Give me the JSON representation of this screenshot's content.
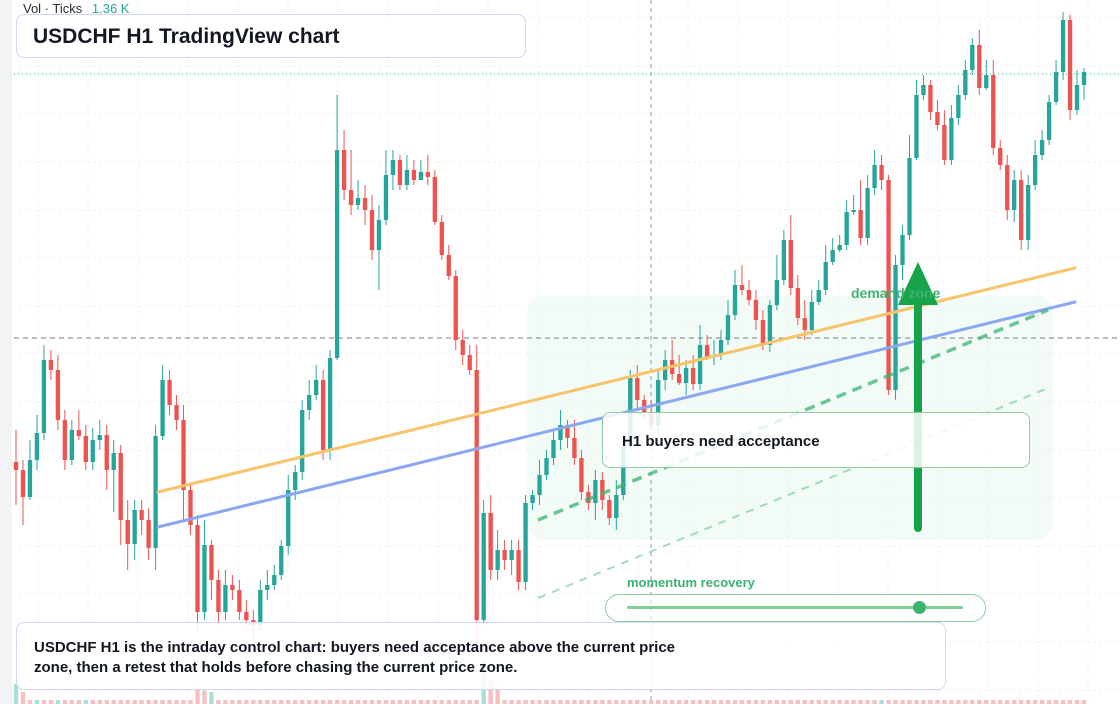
{
  "header": {
    "volume_label": "Vol · Ticks",
    "volume_value": "1.36 K",
    "title": "USDCHF H1 TradingView chart"
  },
  "annotations": {
    "acceptance_label": "H1 buyers need acceptance",
    "demand_label": "demand zone",
    "momentum_label": "momentum recovery",
    "momentum_level": 0.87,
    "note": "USDCHF H1 is the intraday control chart: buyers need acceptance above the current price zone, then a retest that holds before chasing the current price zone."
  },
  "colors": {
    "up": "#26a69a",
    "down": "#ef5350",
    "up_volume": "#8fd3c8",
    "down_volume": "#f6a8ab",
    "orange_trend": "#f7c36b",
    "blue_trend": "#8aa8f0",
    "green_trend": "#3cb371",
    "arrow": "#16a34a",
    "zone_fill": "#eaf7ee"
  },
  "chart_data": {
    "type": "candlestick",
    "title": "",
    "xlabel": "",
    "ylabel": "",
    "price_axis": "hidden",
    "grid": true,
    "price_scale": [
      0,
      704
    ],
    "candles": [
      [
        462,
        470,
        430,
        505
      ],
      [
        470,
        497,
        460,
        525
      ],
      [
        497,
        460,
        440,
        500
      ],
      [
        460,
        433,
        415,
        470
      ],
      [
        433,
        360,
        345,
        440
      ],
      [
        360,
        370,
        350,
        380
      ],
      [
        370,
        420,
        355,
        430
      ],
      [
        420,
        460,
        410,
        470
      ],
      [
        460,
        430,
        420,
        465
      ],
      [
        430,
        436,
        410,
        440
      ],
      [
        436,
        462,
        425,
        470
      ],
      [
        462,
        440,
        428,
        470
      ],
      [
        440,
        435,
        420,
        450
      ],
      [
        435,
        470,
        425,
        490
      ],
      [
        470,
        453,
        440,
        512
      ],
      [
        453,
        520,
        445,
        545
      ],
      [
        520,
        544,
        500,
        570
      ],
      [
        544,
        510,
        500,
        560
      ],
      [
        510,
        520,
        500,
        535
      ],
      [
        520,
        548,
        508,
        560
      ],
      [
        548,
        436,
        425,
        570
      ],
      [
        436,
        380,
        365,
        440
      ],
      [
        380,
        405,
        370,
        415
      ],
      [
        405,
        420,
        395,
        430
      ],
      [
        420,
        490,
        405,
        520
      ],
      [
        490,
        525,
        485,
        535
      ],
      [
        525,
        612,
        515,
        630
      ],
      [
        612,
        545,
        520,
        620
      ],
      [
        545,
        580,
        540,
        600
      ],
      [
        580,
        612,
        570,
        625
      ],
      [
        612,
        585,
        570,
        620
      ],
      [
        585,
        590,
        575,
        600
      ],
      [
        590,
        612,
        580,
        620
      ],
      [
        612,
        620,
        600,
        630
      ],
      [
        620,
        625,
        610,
        640
      ],
      [
        625,
        590,
        580,
        630
      ],
      [
        590,
        585,
        570,
        600
      ],
      [
        585,
        575,
        565,
        590
      ],
      [
        575,
        546,
        540,
        580
      ],
      [
        546,
        490,
        475,
        555
      ],
      [
        490,
        472,
        465,
        500
      ],
      [
        472,
        410,
        400,
        480
      ],
      [
        410,
        395,
        380,
        420
      ],
      [
        395,
        380,
        365,
        400
      ],
      [
        380,
        450,
        370,
        460
      ],
      [
        450,
        358,
        350,
        460
      ],
      [
        358,
        150,
        95,
        360
      ],
      [
        150,
        190,
        130,
        200
      ],
      [
        190,
        205,
        150,
        215
      ],
      [
        205,
        198,
        180,
        210
      ],
      [
        198,
        210,
        185,
        225
      ],
      [
        210,
        250,
        195,
        260
      ],
      [
        250,
        220,
        205,
        290
      ],
      [
        220,
        175,
        150,
        225
      ],
      [
        175,
        160,
        150,
        190
      ],
      [
        160,
        185,
        155,
        190
      ],
      [
        185,
        170,
        155,
        190
      ],
      [
        170,
        180,
        160,
        185
      ],
      [
        180,
        172,
        160,
        180
      ],
      [
        172,
        177,
        155,
        185
      ],
      [
        177,
        222,
        170,
        225
      ],
      [
        222,
        255,
        215,
        260
      ],
      [
        255,
        276,
        245,
        280
      ],
      [
        276,
        340,
        270,
        350
      ],
      [
        340,
        355,
        330,
        365
      ],
      [
        355,
        370,
        345,
        375
      ],
      [
        370,
        620,
        345,
        650
      ],
      [
        620,
        513,
        500,
        625
      ],
      [
        513,
        570,
        495,
        580
      ],
      [
        570,
        550,
        530,
        580
      ],
      [
        550,
        560,
        540,
        570
      ],
      [
        560,
        550,
        540,
        575
      ],
      [
        550,
        582,
        540,
        590
      ],
      [
        582,
        503,
        495,
        590
      ],
      [
        503,
        495,
        490,
        510
      ],
      [
        495,
        475,
        460,
        505
      ],
      [
        475,
        458,
        450,
        480
      ],
      [
        458,
        440,
        430,
        465
      ],
      [
        440,
        425,
        410,
        450
      ],
      [
        425,
        438,
        420,
        448
      ],
      [
        438,
        458,
        420,
        465
      ],
      [
        458,
        492,
        450,
        500
      ],
      [
        492,
        503,
        485,
        510
      ],
      [
        503,
        480,
        470,
        520
      ],
      [
        480,
        500,
        472,
        510
      ],
      [
        500,
        518,
        495,
        525
      ],
      [
        518,
        495,
        480,
        530
      ],
      [
        495,
        447,
        440,
        500
      ],
      [
        447,
        378,
        370,
        450
      ],
      [
        378,
        400,
        365,
        410
      ],
      [
        400,
        412,
        395,
        420
      ],
      [
        412,
        425,
        400,
        430
      ],
      [
        425,
        380,
        370,
        433
      ],
      [
        380,
        360,
        350,
        390
      ],
      [
        360,
        374,
        340,
        380
      ],
      [
        374,
        383,
        355,
        385
      ],
      [
        383,
        368,
        360,
        395
      ],
      [
        368,
        384,
        355,
        390
      ],
      [
        384,
        345,
        325,
        390
      ],
      [
        345,
        357,
        335,
        360
      ],
      [
        357,
        355,
        340,
        365
      ],
      [
        355,
        340,
        330,
        360
      ],
      [
        340,
        315,
        300,
        345
      ],
      [
        315,
        285,
        270,
        320
      ],
      [
        285,
        290,
        265,
        295
      ],
      [
        290,
        300,
        280,
        305
      ],
      [
        300,
        320,
        290,
        330
      ],
      [
        320,
        345,
        310,
        350
      ],
      [
        345,
        305,
        300,
        352
      ],
      [
        305,
        280,
        255,
        310
      ],
      [
        280,
        240,
        230,
        285
      ],
      [
        240,
        288,
        215,
        295
      ],
      [
        288,
        318,
        275,
        325
      ],
      [
        318,
        330,
        300,
        340
      ],
      [
        330,
        302,
        290,
        335
      ],
      [
        302,
        290,
        280,
        305
      ],
      [
        290,
        262,
        245,
        295
      ],
      [
        262,
        250,
        238,
        265
      ],
      [
        250,
        245,
        235,
        252
      ],
      [
        245,
        212,
        200,
        250
      ],
      [
        212,
        210,
        195,
        215
      ],
      [
        210,
        238,
        180,
        245
      ],
      [
        238,
        188,
        175,
        245
      ],
      [
        188,
        165,
        150,
        195
      ],
      [
        165,
        180,
        155,
        190
      ],
      [
        180,
        390,
        175,
        395
      ],
      [
        390,
        265,
        255,
        400
      ],
      [
        265,
        235,
        225,
        280
      ],
      [
        235,
        158,
        135,
        240
      ],
      [
        158,
        95,
        80,
        160
      ],
      [
        95,
        85,
        75,
        100
      ],
      [
        85,
        112,
        80,
        120
      ],
      [
        112,
        125,
        100,
        130
      ],
      [
        125,
        160,
        110,
        165
      ],
      [
        160,
        118,
        105,
        165
      ],
      [
        118,
        95,
        85,
        125
      ],
      [
        95,
        70,
        60,
        100
      ],
      [
        70,
        45,
        38,
        75
      ],
      [
        45,
        88,
        30,
        95
      ],
      [
        88,
        75,
        60,
        90
      ],
      [
        75,
        148,
        60,
        155
      ],
      [
        148,
        165,
        140,
        170
      ],
      [
        165,
        210,
        155,
        220
      ],
      [
        210,
        180,
        170,
        222
      ],
      [
        180,
        240,
        170,
        250
      ],
      [
        240,
        185,
        175,
        250
      ],
      [
        185,
        155,
        140,
        190
      ],
      [
        155,
        140,
        130,
        160
      ],
      [
        140,
        102,
        95,
        145
      ],
      [
        102,
        72,
        60,
        105
      ],
      [
        72,
        20,
        12,
        80
      ],
      [
        20,
        110,
        15,
        120
      ],
      [
        110,
        85,
        70,
        115
      ],
      [
        85,
        72,
        68,
        100
      ]
    ],
    "volume": [
      [
        1,
        10
      ],
      [
        0,
        5
      ],
      [
        0,
        0
      ],
      [
        1,
        0
      ],
      [
        0,
        0
      ],
      [
        0,
        0
      ],
      [
        1,
        0
      ],
      [
        0,
        0
      ],
      [
        0,
        0
      ],
      [
        0,
        0
      ],
      [
        1,
        0
      ],
      [
        0,
        0
      ],
      [
        0,
        0
      ],
      [
        0,
        0
      ],
      [
        0,
        0
      ],
      [
        0,
        0
      ],
      [
        0,
        0
      ],
      [
        0,
        0
      ],
      [
        0,
        0
      ],
      [
        0,
        0
      ],
      [
        0,
        0
      ],
      [
        0,
        0
      ],
      [
        0,
        0
      ],
      [
        0,
        0
      ],
      [
        0,
        0
      ],
      [
        0,
        0
      ],
      [
        0,
        8
      ],
      [
        0,
        6
      ],
      [
        1,
        5
      ],
      [
        0,
        0
      ],
      [
        0,
        0
      ],
      [
        0,
        0
      ],
      [
        0,
        0
      ],
      [
        0,
        0
      ],
      [
        0,
        0
      ],
      [
        0,
        0
      ],
      [
        0,
        0
      ],
      [
        0,
        0
      ],
      [
        0,
        0
      ],
      [
        0,
        0
      ],
      [
        0,
        0
      ],
      [
        0,
        0
      ],
      [
        0,
        0
      ],
      [
        0,
        0
      ],
      [
        0,
        0
      ],
      [
        0,
        0
      ],
      [
        0,
        0
      ],
      [
        0,
        0
      ],
      [
        0,
        0
      ],
      [
        0,
        0
      ],
      [
        0,
        0
      ],
      [
        0,
        0
      ],
      [
        0,
        0
      ],
      [
        0,
        0
      ],
      [
        0,
        0
      ],
      [
        0,
        0
      ],
      [
        0,
        0
      ],
      [
        0,
        0
      ],
      [
        0,
        0
      ],
      [
        0,
        0
      ],
      [
        0,
        0
      ],
      [
        0,
        0
      ],
      [
        0,
        0
      ],
      [
        0,
        0
      ],
      [
        0,
        0
      ],
      [
        0,
        0
      ],
      [
        0,
        0
      ],
      [
        1,
        25
      ],
      [
        0,
        12
      ],
      [
        0,
        8
      ],
      [
        0,
        0
      ],
      [
        0,
        0
      ],
      [
        0,
        0
      ],
      [
        0,
        0
      ],
      [
        0,
        0
      ],
      [
        0,
        0
      ],
      [
        0,
        0
      ],
      [
        0,
        0
      ],
      [
        0,
        0
      ],
      [
        0,
        0
      ],
      [
        0,
        0
      ],
      [
        0,
        0
      ],
      [
        0,
        0
      ],
      [
        0,
        0
      ],
      [
        0,
        0
      ],
      [
        0,
        0
      ],
      [
        0,
        0
      ],
      [
        0,
        0
      ],
      [
        0,
        0
      ],
      [
        0,
        0
      ],
      [
        0,
        0
      ],
      [
        0,
        0
      ],
      [
        0,
        0
      ],
      [
        0,
        0
      ],
      [
        0,
        0
      ],
      [
        0,
        0
      ],
      [
        0,
        0
      ],
      [
        0,
        0
      ],
      [
        0,
        0
      ],
      [
        0,
        0
      ],
      [
        0,
        0
      ],
      [
        0,
        0
      ],
      [
        0,
        0
      ],
      [
        0,
        0
      ],
      [
        0,
        0
      ],
      [
        0,
        0
      ],
      [
        0,
        0
      ],
      [
        0,
        0
      ],
      [
        0,
        0
      ],
      [
        0,
        0
      ],
      [
        0,
        0
      ],
      [
        0,
        0
      ],
      [
        0,
        0
      ],
      [
        0,
        0
      ],
      [
        0,
        0
      ],
      [
        0,
        0
      ],
      [
        0,
        0
      ],
      [
        0,
        0
      ],
      [
        0,
        0
      ],
      [
        0,
        0
      ],
      [
        0,
        0
      ],
      [
        0,
        0
      ],
      [
        0,
        0
      ],
      [
        0,
        0
      ],
      [
        1,
        0
      ],
      [
        0,
        0
      ],
      [
        0,
        0
      ],
      [
        0,
        0
      ],
      [
        0,
        0
      ],
      [
        0,
        0
      ],
      [
        0,
        0
      ],
      [
        0,
        0
      ],
      [
        0,
        0
      ],
      [
        0,
        0
      ],
      [
        0,
        0
      ],
      [
        0,
        0
      ],
      [
        0,
        0
      ],
      [
        0,
        0
      ],
      [
        0,
        0
      ],
      [
        0,
        0
      ],
      [
        0,
        0
      ],
      [
        0,
        0
      ],
      [
        0,
        0
      ],
      [
        0,
        0
      ],
      [
        0,
        0
      ],
      [
        0,
        0
      ],
      [
        0,
        0
      ],
      [
        0,
        0
      ],
      [
        0,
        0
      ],
      [
        0,
        0
      ],
      [
        0,
        0
      ],
      [
        0,
        0
      ],
      [
        0,
        0
      ],
      [
        0,
        0
      ]
    ]
  }
}
